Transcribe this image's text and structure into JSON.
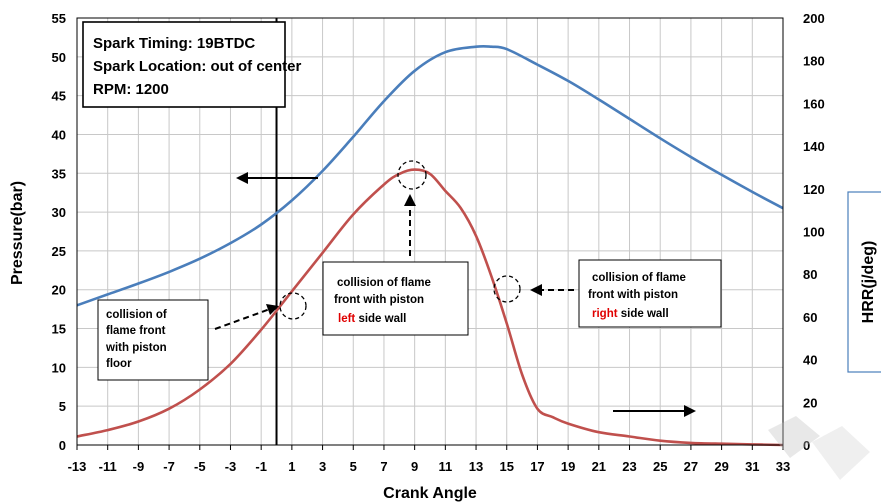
{
  "chart_data": {
    "type": "line",
    "title": "",
    "xlabel": "Crank Angle",
    "ylabel": "Pressure(bar)",
    "y2label": "HRR(j/deg)",
    "xlim": [
      -13,
      33
    ],
    "ylim": [
      0,
      55
    ],
    "y2lim": [
      0,
      200
    ],
    "x_ticks": [
      "-13",
      "-11",
      "-9",
      "-7",
      "-5",
      "-3",
      "-1",
      "1",
      "3",
      "5",
      "7",
      "9",
      "11",
      "13",
      "15",
      "17",
      "19",
      "21",
      "23",
      "25",
      "27",
      "29",
      "31",
      "33"
    ],
    "y_ticks": [
      "0",
      "5",
      "10",
      "15",
      "20",
      "25",
      "30",
      "35",
      "40",
      "45",
      "50",
      "55"
    ],
    "y2_ticks": [
      "0",
      "20",
      "40",
      "60",
      "80",
      "100",
      "120",
      "140",
      "160",
      "180",
      "200"
    ],
    "grid": true,
    "series": [
      {
        "axis": "left",
        "color": "#4a7ebb",
        "x": [
          -13,
          -11,
          -9,
          -7,
          -5,
          -3,
          -1,
          1,
          3,
          5,
          7,
          9,
          11,
          13,
          14,
          15,
          17,
          19,
          21,
          23,
          25,
          27,
          29,
          31,
          33
        ],
        "values": [
          18.0,
          19.4,
          20.8,
          22.3,
          24.0,
          26.0,
          28.4,
          31.5,
          35.3,
          39.7,
          44.3,
          48.2,
          50.6,
          51.3,
          51.3,
          51.0,
          49.0,
          46.9,
          44.5,
          42.0,
          39.5,
          37.1,
          34.8,
          32.6,
          30.5
        ]
      },
      {
        "axis": "right",
        "color": "#c0504d",
        "x": [
          -13,
          -11,
          -9,
          -7,
          -5,
          -3,
          -1,
          1,
          3,
          5,
          7,
          8,
          9,
          10,
          11,
          12,
          13,
          14,
          15,
          16,
          17,
          18,
          19,
          21,
          23,
          25,
          27,
          29,
          31,
          33
        ],
        "values": [
          4,
          7,
          11,
          17,
          26,
          38,
          54,
          72,
          90,
          108,
          122,
          127,
          129,
          127,
          119,
          111,
          98,
          79,
          57,
          33,
          17,
          13,
          10,
          6,
          4,
          2,
          1,
          0.6,
          0.3,
          0
        ]
      }
    ],
    "info_box": [
      "Spark Timing: 19BTDC",
      "Spark Location: out of center",
      "RPM: 1200"
    ],
    "annotations": [
      {
        "lines": [
          "collision of",
          "flame front",
          "with piston",
          "floor"
        ]
      },
      {
        "lines": [
          "collision of flame",
          "front with piston"
        ],
        "red": "left",
        "after": " side wall"
      },
      {
        "lines": [
          "collision of flame",
          "front with piston"
        ],
        "red": "right",
        "after": " side wall"
      }
    ]
  }
}
